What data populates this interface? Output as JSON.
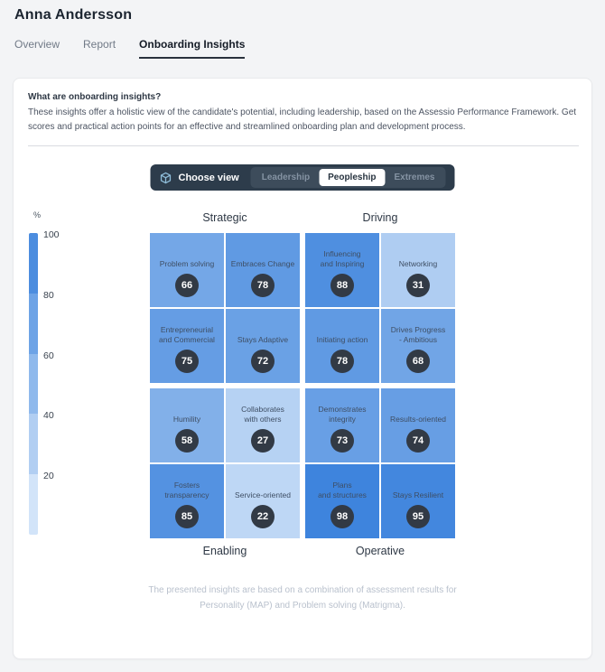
{
  "header": {
    "title": "Anna Andersson"
  },
  "tabs": [
    {
      "label": "Overview",
      "active": false
    },
    {
      "label": "Report",
      "active": false
    },
    {
      "label": "Onboarding Insights",
      "active": true
    }
  ],
  "info": {
    "heading": "What are onboarding insights?",
    "body": "These insights offer a holistic view of the candidate's potential, including leadership, based on the Assessio Performance Framework. Get scores and practical action points for an effective and streamlined onboarding plan and development process."
  },
  "view_switcher": {
    "icon": "cube-icon",
    "label": "Choose view",
    "options": [
      {
        "label": "Leadership",
        "selected": false
      },
      {
        "label": "Peopleship",
        "selected": true
      },
      {
        "label": "Extremes",
        "selected": false
      }
    ]
  },
  "chart_data": {
    "type": "heatmap",
    "title": "Onboarding insights quadrant matrix",
    "axis": {
      "unit": "%",
      "ticks": [
        100,
        80,
        60,
        40,
        20
      ],
      "range": [
        0,
        100
      ]
    },
    "colors": {
      "scale_high": "#3b82dc",
      "scale_low": "#e3effc",
      "badge": "#323a45"
    },
    "quadrants": [
      {
        "name": "Strategic",
        "position": "top-left",
        "cells": [
          {
            "label": "Problem solving",
            "label_lines": [
              "Problem solving"
            ],
            "value": 66
          },
          {
            "label": "Embraces Change",
            "label_lines": [
              "Embraces Change"
            ],
            "value": 78
          },
          {
            "label": "Entrepreneurial and Commercial",
            "label_lines": [
              "Entrepreneurial",
              "and Commercial"
            ],
            "value": 75
          },
          {
            "label": "Stays Adaptive",
            "label_lines": [
              "Stays Adaptive"
            ],
            "value": 72
          }
        ]
      },
      {
        "name": "Driving",
        "position": "top-right",
        "cells": [
          {
            "label": "Influencing and Inspiring",
            "label_lines": [
              "Influencing",
              "and Inspiring"
            ],
            "value": 88
          },
          {
            "label": "Networking",
            "label_lines": [
              "Networking"
            ],
            "value": 31
          },
          {
            "label": "Initiating action",
            "label_lines": [
              "Initiating action"
            ],
            "value": 78
          },
          {
            "label": "Drives Progress - Ambitious",
            "label_lines": [
              "Drives Progress",
              "- Ambitious"
            ],
            "value": 68
          }
        ]
      },
      {
        "name": "Enabling",
        "position": "bottom-left",
        "cells": [
          {
            "label": "Humility",
            "label_lines": [
              "Humility"
            ],
            "value": 58
          },
          {
            "label": "Collaborates with others",
            "label_lines": [
              "Collaborates",
              "with others"
            ],
            "value": 27
          },
          {
            "label": "Fosters transparency",
            "label_lines": [
              "Fosters",
              "transparency"
            ],
            "value": 85
          },
          {
            "label": "Service-oriented",
            "label_lines": [
              "Service-oriented"
            ],
            "value": 22
          }
        ]
      },
      {
        "name": "Operative",
        "position": "bottom-right",
        "cells": [
          {
            "label": "Demonstrates integrity",
            "label_lines": [
              "Demonstrates",
              "integrity"
            ],
            "value": 73
          },
          {
            "label": "Results-oriented",
            "label_lines": [
              "Results-oriented"
            ],
            "value": 74
          },
          {
            "label": "Plans and structures",
            "label_lines": [
              "Plans",
              "and structures"
            ],
            "value": 98
          },
          {
            "label": "Stays Resilient",
            "label_lines": [
              "Stays Resilient"
            ],
            "value": 95
          }
        ]
      }
    ]
  },
  "footer": {
    "note": "The presented insights are based on a combination of assessment results for\nPersonality (MAP) and Problem solving (Matrigma)."
  }
}
